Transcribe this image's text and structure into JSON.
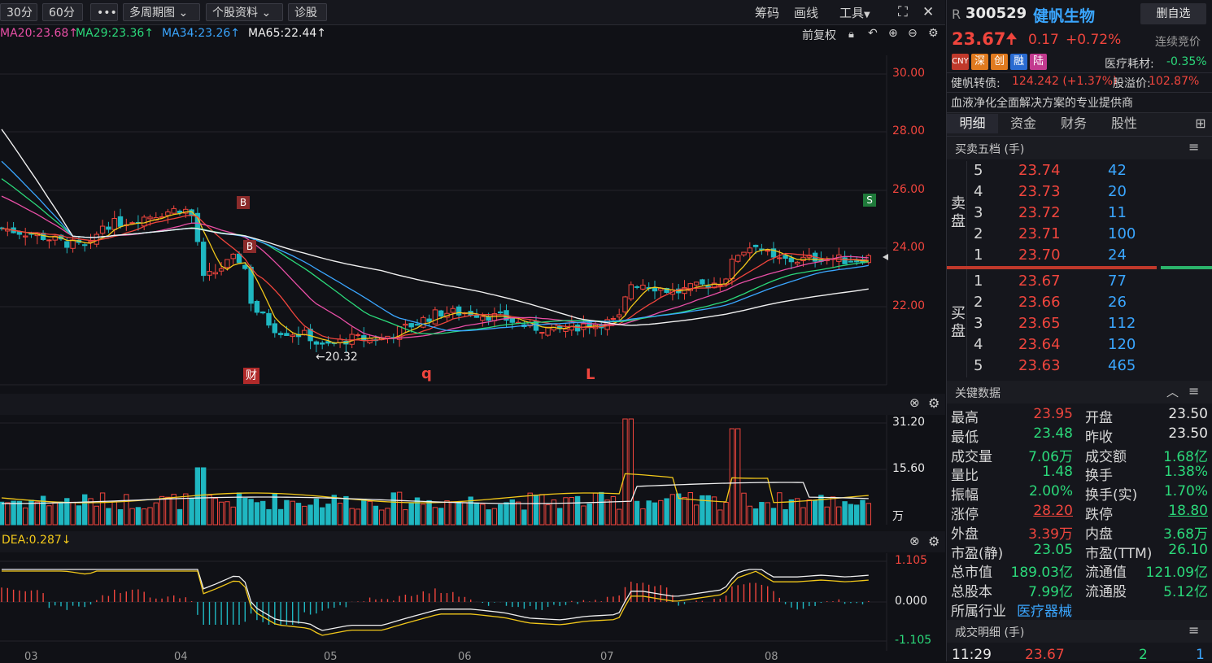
{
  "toolbar": {
    "period": "30分",
    "period2": "60分",
    "more": "•••",
    "multi_period": "多周期图",
    "stock_info": "个股资料",
    "diagnose": "诊股",
    "chips": "筹码",
    "draw_line": "画线",
    "tools": "工具",
    "adjust": "前复权"
  },
  "ma_legend": {
    "ma20": "MA20:23.68↑",
    "ma29": "MA29:23.36↑",
    "ma34": "MA34:23.26↑",
    "ma65": "MA65:22.44↑"
  },
  "colors": {
    "up": "#f0453d",
    "down": "#1fb7c1",
    "ma20": "#e84fa6",
    "ma29": "#2bd97a",
    "ma34": "#3aa6ff",
    "ma65": "#f0f0f0",
    "ma5": "#f2c81a",
    "ma10": "#f0453d"
  },
  "price_axis": [
    "30.00",
    "28.00",
    "26.00",
    "24.00",
    "22.00"
  ],
  "markers": {
    "low_label": "←20.32",
    "b1": "B",
    "b2": "B",
    "s": "S",
    "cai": "财",
    "q": "q",
    "l": "L"
  },
  "volume_axis": [
    "31.20",
    "15.60",
    "万"
  ],
  "macd": {
    "legend": "DEA:0.287↓",
    "axis": [
      "1.105",
      "0.000",
      "-1.105"
    ]
  },
  "x_axis": [
    "03",
    "04",
    "05",
    "06",
    "07",
    "08"
  ],
  "stock": {
    "prefix": "R",
    "code": "300529",
    "name": "健帆生物",
    "delete_button": "删自选",
    "price": "23.67",
    "change": "0.17",
    "change_pct": "+0.72%",
    "status": "连续竞价",
    "badges": [
      "CNY",
      "深",
      "创",
      "融",
      "陆"
    ],
    "sector": "医疗耗材:",
    "sector_pct": "-0.35%",
    "bond_label": "健帆转债:",
    "bond_value": "124.242 (+1.37%)",
    "premium_label": "股溢价:",
    "premium_value": "102.87%",
    "slogan": "血液净化全面解决方案的专业提供商"
  },
  "tabs": [
    "明细",
    "资金",
    "财务",
    "股性"
  ],
  "order_book": {
    "title": "买卖五档 (手)",
    "sell_label": "卖盘",
    "buy_label": "买盘",
    "sell": [
      {
        "level": "5",
        "price": "23.74",
        "vol": "42"
      },
      {
        "level": "4",
        "price": "23.73",
        "vol": "20"
      },
      {
        "level": "3",
        "price": "23.72",
        "vol": "11"
      },
      {
        "level": "2",
        "price": "23.71",
        "vol": "100"
      },
      {
        "level": "1",
        "price": "23.70",
        "vol": "24"
      }
    ],
    "buy": [
      {
        "level": "1",
        "price": "23.67",
        "vol": "77"
      },
      {
        "level": "2",
        "price": "23.66",
        "vol": "26"
      },
      {
        "level": "3",
        "price": "23.65",
        "vol": "112"
      },
      {
        "level": "4",
        "price": "23.64",
        "vol": "120"
      },
      {
        "level": "5",
        "price": "23.63",
        "vol": "465"
      }
    ]
  },
  "key_data": {
    "title": "关键数据",
    "rows": [
      {
        "l1": "最高",
        "v1": "23.95",
        "c1": "red",
        "l2": "开盘",
        "v2": "23.50",
        "c2": "white"
      },
      {
        "l1": "最低",
        "v1": "23.48",
        "c1": "green",
        "l2": "昨收",
        "v2": "23.50",
        "c2": "white"
      },
      {
        "l1": "成交量",
        "v1": "7.06万",
        "c1": "green",
        "l2": "成交额",
        "v2": "1.68亿",
        "c2": "green"
      },
      {
        "l1": "量比",
        "v1": "1.48",
        "c1": "green",
        "l2": "换手",
        "v2": "1.38%",
        "c2": "green"
      },
      {
        "l1": "振幅",
        "v1": "2.00%",
        "c1": "green",
        "l2": "换手(实)",
        "v2": "1.70%",
        "c2": "green"
      },
      {
        "l1": "涨停",
        "v1": "28.20",
        "c1": "red",
        "l2": "跌停",
        "v2": "18.80",
        "c2": "green"
      },
      {
        "l1": "外盘",
        "v1": "3.39万",
        "c1": "red",
        "l2": "内盘",
        "v2": "3.68万",
        "c2": "green"
      },
      {
        "l1": "市盈(静)",
        "v1": "23.05",
        "c1": "green",
        "l2": "市盈(TTM)",
        "v2": "26.10",
        "c2": "green"
      },
      {
        "l1": "总市值",
        "v1": "189.03亿",
        "c1": "green",
        "l2": "流通值",
        "v2": "121.09亿",
        "c2": "green"
      },
      {
        "l1": "总股本",
        "v1": "7.99亿",
        "c1": "green",
        "l2": "流通股",
        "v2": "5.12亿",
        "c2": "green"
      }
    ],
    "industry_label": "所属行业",
    "industry_value": "医疗器械"
  },
  "trade_detail": {
    "title": "成交明细 (手)",
    "time": "11:29",
    "price": "23.67",
    "vol": "2",
    "count": "1"
  }
}
